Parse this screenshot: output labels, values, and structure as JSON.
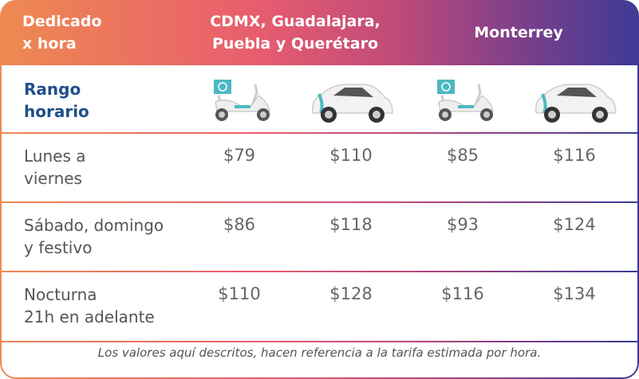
{
  "header": {
    "title_line1": "Dedicado",
    "title_line2": "x hora",
    "region1_line1": "CDMX, Guadalajara,",
    "region1_line2": "Puebla y Querétaro",
    "region2": "Monterrey"
  },
  "subheader": {
    "label_line1": "Rango",
    "label_line2": "horario",
    "icons": [
      "scooter-icon",
      "car-icon",
      "scooter-icon",
      "car-icon"
    ]
  },
  "rows": [
    {
      "label_line1": "Lunes a",
      "label_line2": "viernes",
      "prices": [
        "$79",
        "$110",
        "$85",
        "$116"
      ]
    },
    {
      "label_line1": "Sábado, domingo",
      "label_line2": "y festivo",
      "prices": [
        "$86",
        "$118",
        "$93",
        "$124"
      ]
    },
    {
      "label_line1": "Nocturna",
      "label_line2": "21h en adelante",
      "prices": [
        "$110",
        "$128",
        "$116",
        "$134"
      ]
    }
  ],
  "footer": "Los valores aquí descritos, hacen referencia a la tarifa estimada por hora.",
  "colors": {
    "gradient_start": "#ee8a50",
    "gradient_mid": "#e85d6e",
    "gradient_end": "#3e3a95",
    "label_blue": "#1f4f8a",
    "teal": "#4db8c4"
  }
}
